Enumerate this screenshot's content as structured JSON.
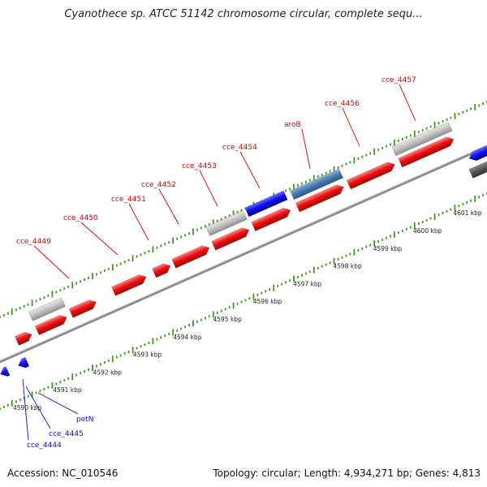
{
  "title": "Cyanothece sp. ATCC 51142 chromosome circular, complete sequ...",
  "footer": {
    "accession": "Accession: NC_010546",
    "topology": "Topology: circular; Length: 4,934,271 bp; Genes: 4,813"
  },
  "colors": {
    "forward_gene": "#ee1111",
    "rna_gene": "#1111ee",
    "steel_gene": "#4a7fb0",
    "pseudo_gene": "#c0c0c0",
    "backbone": "#808080",
    "tick_green": "#3f9a1f"
  },
  "top_labels": [
    "cce_4449",
    "cce_4450",
    "cce_4451",
    "cce_4452",
    "cce_4453",
    "cce_4454",
    "aroB",
    "cce_4456",
    "cce_4457"
  ],
  "bottom_labels": [
    "petN",
    "cce_4445",
    "cce_4444"
  ],
  "scale_labels": [
    "4590 kbp",
    "4591 kbp",
    "4592 kbp",
    "4593 kbp",
    "4594 kbp",
    "4595 kbp",
    "4596 kbp",
    "4597 kbp",
    "4598 kbp",
    "4599 kbp",
    "4600 kbp",
    "4601 kbp"
  ]
}
